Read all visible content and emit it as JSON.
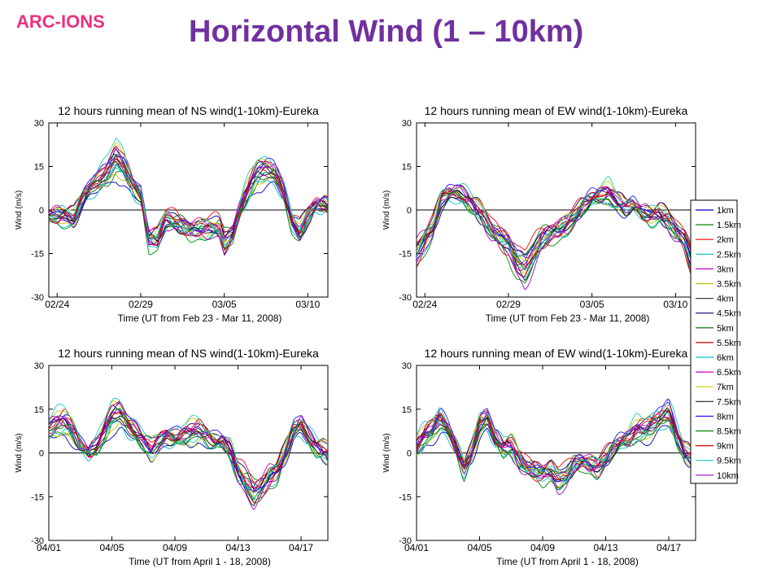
{
  "slide": {
    "logo_text": "ARC-IONS",
    "title": "Horizontal Wind (1 – 10km)"
  },
  "legend": {
    "placement": "right",
    "entries": [
      {
        "label": "1km",
        "color": "#0000cc"
      },
      {
        "label": "1.5km",
        "color": "#008000"
      },
      {
        "label": "2km",
        "color": "#ff0000"
      },
      {
        "label": "2.5km",
        "color": "#00bfbf"
      },
      {
        "label": "3km",
        "color": "#bf00bf"
      },
      {
        "label": "3.5km",
        "color": "#bfbf00"
      },
      {
        "label": "4km",
        "color": "#404040"
      },
      {
        "label": "4.5km",
        "color": "#000080"
      },
      {
        "label": "5km",
        "color": "#006400"
      },
      {
        "label": "5.5km",
        "color": "#cc0000"
      },
      {
        "label": "6km",
        "color": "#00cccc"
      },
      {
        "label": "6.5km",
        "color": "#cc00cc"
      },
      {
        "label": "7km",
        "color": "#cccc00"
      },
      {
        "label": "7.5km",
        "color": "#202020"
      },
      {
        "label": "8km",
        "color": "#1a1aff"
      },
      {
        "label": "8.5km",
        "color": "#008800"
      },
      {
        "label": "9km",
        "color": "#e00000"
      },
      {
        "label": "9.5km",
        "color": "#1fc8c8"
      },
      {
        "label": "10km",
        "color": "#a000c8"
      }
    ]
  },
  "chart_data": [
    {
      "type": "line",
      "title": "12 hours running mean of NS wind(1-10km)-Eureka",
      "xlabel": "Time (UT from Feb 23 - Mar 11, 2008)",
      "ylabel": "Wind (m/s)",
      "ylim": [
        -30,
        30
      ],
      "yticks": [
        "30",
        "15",
        "0",
        "-15",
        "-30"
      ],
      "xlim_days": [
        0.5,
        17.2
      ],
      "xticks": [
        {
          "label": "02/24",
          "day": 1
        },
        {
          "label": "02/29",
          "day": 6
        },
        {
          "label": "03/05",
          "day": 11
        },
        {
          "label": "03/10",
          "day": 16
        }
      ],
      "zero_line": true,
      "base_profile": [
        [
          0.5,
          -2
        ],
        [
          1.5,
          -2
        ],
        [
          2,
          -3
        ],
        [
          2.5,
          4
        ],
        [
          3,
          8
        ],
        [
          3.5,
          10
        ],
        [
          4,
          13
        ],
        [
          4.5,
          18
        ],
        [
          5,
          15
        ],
        [
          5.5,
          9
        ],
        [
          6,
          5
        ],
        [
          6.5,
          -10
        ],
        [
          7,
          -10
        ],
        [
          7.5,
          -3
        ],
        [
          8,
          -4
        ],
        [
          9,
          -7
        ],
        [
          10,
          -6
        ],
        [
          10.7,
          -6
        ],
        [
          11,
          -11
        ],
        [
          11.5,
          -8
        ],
        [
          12,
          1
        ],
        [
          12.5,
          8
        ],
        [
          13,
          13
        ],
        [
          13.5,
          14
        ],
        [
          14,
          13
        ],
        [
          14.5,
          7
        ],
        [
          15,
          -3
        ],
        [
          15.5,
          -8
        ],
        [
          16,
          -2
        ],
        [
          16.5,
          2
        ],
        [
          17,
          2
        ],
        [
          17.2,
          1
        ]
      ]
    },
    {
      "type": "line",
      "title": "12 hours running mean of EW wind(1-10km)-Eureka",
      "xlabel": "Time (UT from Feb 23 - Mar 11, 2008)",
      "ylabel": "Wind (m/s)",
      "ylim": [
        -30,
        30
      ],
      "yticks": [
        "30",
        "15",
        "0",
        "-15",
        "-30"
      ],
      "xlim_days": [
        0.5,
        17.2
      ],
      "xticks": [
        {
          "label": "02/24",
          "day": 1
        },
        {
          "label": "02/29",
          "day": 6
        },
        {
          "label": "03/05",
          "day": 11
        },
        {
          "label": "03/10",
          "day": 16
        }
      ],
      "zero_line": true,
      "base_profile": [
        [
          0.5,
          -15
        ],
        [
          1,
          -10
        ],
        [
          1.5,
          -6
        ],
        [
          2,
          4
        ],
        [
          2.5,
          6
        ],
        [
          3,
          6
        ],
        [
          3.5,
          4
        ],
        [
          4,
          1
        ],
        [
          4.5,
          -2
        ],
        [
          5,
          -7
        ],
        [
          6,
          -12
        ],
        [
          6.5,
          -18
        ],
        [
          7,
          -20
        ],
        [
          7.5,
          -15
        ],
        [
          8,
          -10
        ],
        [
          8.5,
          -8
        ],
        [
          9,
          -7
        ],
        [
          9.5,
          -5
        ],
        [
          10,
          -2
        ],
        [
          10.5,
          2
        ],
        [
          11,
          4
        ],
        [
          11.5,
          5
        ],
        [
          12,
          6
        ],
        [
          12.5,
          3
        ],
        [
          13,
          1
        ],
        [
          13.5,
          2
        ],
        [
          14,
          -1
        ],
        [
          14.5,
          -2
        ],
        [
          15,
          -1
        ],
        [
          15.5,
          -3
        ],
        [
          16,
          -7
        ],
        [
          16.5,
          -10
        ],
        [
          17,
          -18
        ],
        [
          17.2,
          -22
        ]
      ]
    },
    {
      "type": "line",
      "title": "12 hours running mean of NS wind(1-10km)-Eureka",
      "xlabel": "Time (UT from April 1 - 18, 2008)",
      "ylabel": "Wind (m/s)",
      "ylim": [
        -30,
        30
      ],
      "yticks": [
        "30",
        "15",
        "0",
        "-15",
        "-30"
      ],
      "xlim_days": [
        0,
        17.7
      ],
      "xticks": [
        {
          "label": "04/01",
          "day": 0
        },
        {
          "label": "04/05",
          "day": 4
        },
        {
          "label": "04/09",
          "day": 8
        },
        {
          "label": "04/13",
          "day": 12
        },
        {
          "label": "04/17",
          "day": 16
        }
      ],
      "zero_line": true,
      "base_profile": [
        [
          0,
          8
        ],
        [
          0.5,
          10
        ],
        [
          1,
          11
        ],
        [
          1.5,
          8
        ],
        [
          2,
          3
        ],
        [
          2.5,
          0
        ],
        [
          3,
          2
        ],
        [
          3.5,
          7
        ],
        [
          4,
          13
        ],
        [
          4.5,
          14
        ],
        [
          5,
          10
        ],
        [
          5.5,
          7
        ],
        [
          6,
          4
        ],
        [
          6.5,
          1
        ],
        [
          7,
          4
        ],
        [
          7.5,
          6
        ],
        [
          8,
          5
        ],
        [
          8.5,
          6
        ],
        [
          9,
          7
        ],
        [
          9.5,
          8
        ],
        [
          10,
          6
        ],
        [
          10.5,
          4
        ],
        [
          11,
          4
        ],
        [
          11.5,
          1
        ],
        [
          12,
          -6
        ],
        [
          12.5,
          -10
        ],
        [
          13,
          -14
        ],
        [
          13.5,
          -12
        ],
        [
          14,
          -8
        ],
        [
          14.5,
          -6
        ],
        [
          15,
          0
        ],
        [
          15.5,
          8
        ],
        [
          16,
          10
        ],
        [
          16.5,
          5
        ],
        [
          17,
          2
        ],
        [
          17.7,
          0
        ]
      ]
    },
    {
      "type": "line",
      "title": "12 hours running mean of EW wind(1-10km)-Eureka",
      "xlabel": "Time (UT from April 1 - 18, 2008)",
      "ylabel": "Wind (m/s)",
      "ylim": [
        -30,
        30
      ],
      "yticks": [
        "30",
        "15",
        "0",
        "-15",
        "-30"
      ],
      "xlim_days": [
        0,
        17.7
      ],
      "xticks": [
        {
          "label": "04/01",
          "day": 0
        },
        {
          "label": "04/05",
          "day": 4
        },
        {
          "label": "04/09",
          "day": 8
        },
        {
          "label": "04/13",
          "day": 12
        },
        {
          "label": "04/17",
          "day": 16
        }
      ],
      "zero_line": true,
      "base_profile": [
        [
          0,
          2
        ],
        [
          0.5,
          6
        ],
        [
          1,
          8
        ],
        [
          1.5,
          12
        ],
        [
          2,
          8
        ],
        [
          2.5,
          2
        ],
        [
          3,
          -5
        ],
        [
          3.5,
          0
        ],
        [
          4,
          10
        ],
        [
          4.5,
          12
        ],
        [
          5,
          5
        ],
        [
          5.5,
          2
        ],
        [
          6,
          3
        ],
        [
          6.5,
          -2
        ],
        [
          7,
          -5
        ],
        [
          7.5,
          -6
        ],
        [
          8,
          -7
        ],
        [
          8.5,
          -6
        ],
        [
          9,
          -9
        ],
        [
          9.5,
          -8
        ],
        [
          10,
          -4
        ],
        [
          10.5,
          -3
        ],
        [
          11,
          -4
        ],
        [
          11.5,
          -5
        ],
        [
          12,
          -2
        ],
        [
          12.5,
          2
        ],
        [
          13,
          4
        ],
        [
          13.5,
          5
        ],
        [
          14,
          8
        ],
        [
          14.5,
          8
        ],
        [
          15,
          10
        ],
        [
          15.5,
          12
        ],
        [
          16,
          14
        ],
        [
          16.5,
          6
        ],
        [
          17,
          0
        ],
        [
          17.7,
          -2
        ]
      ]
    }
  ]
}
